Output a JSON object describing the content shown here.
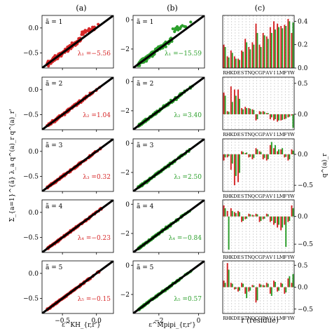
{
  "columns": [
    {
      "label": "(a)",
      "xlabel": "ε^KH_{r,r'}"
    },
    {
      "label": "(b)",
      "xlabel": "ε^Mpipi_{r,r'}"
    },
    {
      "label": "(c)",
      "xlabel": "r (residue)"
    }
  ],
  "ylabel_left": "Σ_{a=1}^{ã} λ_a q^(a)_r q^(a)_r'",
  "ylabel_right": "q^(a)_r",
  "colors": {
    "kh": "#d62728",
    "mpipi": "#2ca02c",
    "red_bar": "#d62728",
    "green_bar": "#2ca02c",
    "diag": "#000000"
  },
  "chart_data": [
    {
      "type": "scatter",
      "model": "KH",
      "xlim": [
        -0.8,
        0.25
      ],
      "ylim": [
        -0.8,
        0.25
      ],
      "xticks": [
        -0.5,
        0.0
      ],
      "xtick_labels": [
        "−0.5",
        "0.0"
      ],
      "yticks": [
        -0.5,
        0.0
      ],
      "ytick_labels": [
        "−0.5",
        "0.0"
      ],
      "rows": [
        {
          "a_label": "ã = 1",
          "lambda_label": "λ₁ =−5.56",
          "lambda": -5.56
        },
        {
          "a_label": "ã = 2",
          "lambda_label": "λ₂ =1.04",
          "lambda": 1.04
        },
        {
          "a_label": "ã = 3",
          "lambda_label": "λ₃ =0.32",
          "lambda": 0.32
        },
        {
          "a_label": "ã = 4",
          "lambda_label": "λ₄ =−0.23",
          "lambda": -0.23
        },
        {
          "a_label": "ã = 5",
          "lambda_label": "λ₅ =−0.15",
          "lambda": -0.15
        }
      ]
    },
    {
      "type": "scatter",
      "model": "Mpipi",
      "xlim": [
        -3.3,
        0.3
      ],
      "ylim": [
        -3.3,
        0.3
      ],
      "xticks": [
        -2,
        0
      ],
      "xtick_labels": [
        "−2",
        "0"
      ],
      "yticks": [
        -2,
        0
      ],
      "ytick_labels": [
        "−2",
        "0"
      ],
      "rows": [
        {
          "a_label": "ã = 1",
          "lambda_label": "λ₁ =−15.59",
          "lambda": -15.59
        },
        {
          "a_label": "ã = 2",
          "lambda_label": "λ₂ =3.40",
          "lambda": 3.4
        },
        {
          "a_label": "ã = 3",
          "lambda_label": "λ₃ =2.50",
          "lambda": 2.5
        },
        {
          "a_label": "ã = 4",
          "lambda_label": "λ₄ =−0.84",
          "lambda": -0.84
        },
        {
          "a_label": "ã = 5",
          "lambda_label": "λ₅ =0.57",
          "lambda": 0.57
        }
      ]
    },
    {
      "type": "bar",
      "categories": [
        "R",
        "H",
        "K",
        "D",
        "E",
        "S",
        "T",
        "N",
        "Q",
        "C",
        "G",
        "P",
        "A",
        "V",
        "I",
        "L",
        "M",
        "F",
        "Y",
        "W"
      ],
      "series_colors": [
        "#d62728",
        "#2ca02c"
      ],
      "rows": [
        {
          "ylim": [
            0,
            0.45
          ],
          "yticks": [
            0,
            0.2,
            0.4
          ],
          "ytick_labels": [
            "0.0",
            "0.2",
            "0.4"
          ],
          "red": [
            0.2,
            0.1,
            0.15,
            0.1,
            0.08,
            0.15,
            0.25,
            0.18,
            0.22,
            0.38,
            0.2,
            0.3,
            0.27,
            0.35,
            0.4,
            0.38,
            0.36,
            0.37,
            0.42,
            0.3
          ],
          "green": [
            0.18,
            0.09,
            0.13,
            0.08,
            0.07,
            0.14,
            0.22,
            0.16,
            0.2,
            0.3,
            0.18,
            0.28,
            0.25,
            0.3,
            0.33,
            0.35,
            0.34,
            0.36,
            0.4,
            0.39
          ]
        },
        {
          "ylim": [
            -0.25,
            0.6
          ],
          "yticks": [
            0,
            0.5
          ],
          "ytick_labels": [
            "0.0",
            "0.5"
          ],
          "red": [
            0.35,
            0.05,
            0.45,
            0.4,
            0.4,
            0.1,
            0.12,
            0.1,
            0.08,
            -0.1,
            0.05,
            0.05,
            0.02,
            -0.08,
            -0.1,
            -0.12,
            -0.1,
            -0.08,
            -0.05,
            -0.02
          ],
          "green": [
            0.3,
            0.04,
            0.2,
            0.3,
            0.25,
            0.08,
            0.1,
            0.09,
            0.07,
            -0.08,
            0.04,
            0.04,
            0.02,
            -0.05,
            -0.08,
            -0.1,
            -0.09,
            -0.07,
            -0.04,
            -0.22
          ]
        },
        {
          "ylim": [
            -0.6,
            0.25
          ],
          "yticks": [
            -0.5,
            0
          ],
          "ytick_labels": [
            "−0.5",
            "0.0"
          ],
          "red": [
            -0.1,
            -0.05,
            -0.25,
            -0.5,
            -0.45,
            0.05,
            0.02,
            -0.05,
            -0.08,
            0.1,
            0.05,
            -0.08,
            -0.1,
            0.15,
            0.1,
            0.05,
            0.08,
            -0.05,
            -0.1,
            0.08
          ],
          "green": [
            -0.05,
            -0.03,
            -0.15,
            -0.35,
            -0.3,
            0.04,
            0.03,
            -0.04,
            -0.06,
            0.08,
            0.04,
            -0.06,
            -0.08,
            0.2,
            0.15,
            0.08,
            0.1,
            -0.04,
            -0.08,
            0.06
          ]
        },
        {
          "ylim": [
            -0.65,
            0.3
          ],
          "yticks": [
            -0.5,
            0
          ],
          "ytick_labels": [
            "−0.5",
            "0.0"
          ],
          "red": [
            0.2,
            0.1,
            0.15,
            0.08,
            0.1,
            -0.1,
            -0.05,
            0.05,
            0.03,
            0.05,
            -0.1,
            -0.05,
            0.05,
            -0.1,
            -0.15,
            -0.2,
            -0.25,
            -0.15,
            -0.1,
            0.2
          ],
          "green": [
            0.15,
            -0.6,
            0.1,
            0.06,
            0.08,
            -0.08,
            -0.04,
            0.04,
            0.02,
            0.04,
            -0.08,
            -0.04,
            0.04,
            -0.08,
            -0.12,
            -0.15,
            -0.2,
            -0.55,
            -0.08,
            0.15
          ]
        },
        {
          "ylim": [
            -0.6,
            0.6
          ],
          "yticks": [
            -0.5,
            0,
            0.5
          ],
          "ytick_labels": [
            "−0.5",
            "0.0",
            "0.5"
          ],
          "red": [
            0.15,
            0.55,
            0.1,
            -0.05,
            -0.1,
            0.1,
            -0.15,
            -0.1,
            0.05,
            -0.35,
            0.08,
            0.05,
            0.1,
            -0.15,
            0.15,
            -0.1,
            0.1,
            -0.15,
            0.2,
            0.1
          ],
          "green": [
            0.1,
            0.4,
            0.08,
            -0.04,
            -0.08,
            0.08,
            -0.25,
            -0.08,
            0.04,
            -0.3,
            0.06,
            0.04,
            0.08,
            -0.2,
            0.12,
            -0.08,
            0.08,
            -0.12,
            0.25,
            0.3
          ]
        }
      ]
    }
  ]
}
